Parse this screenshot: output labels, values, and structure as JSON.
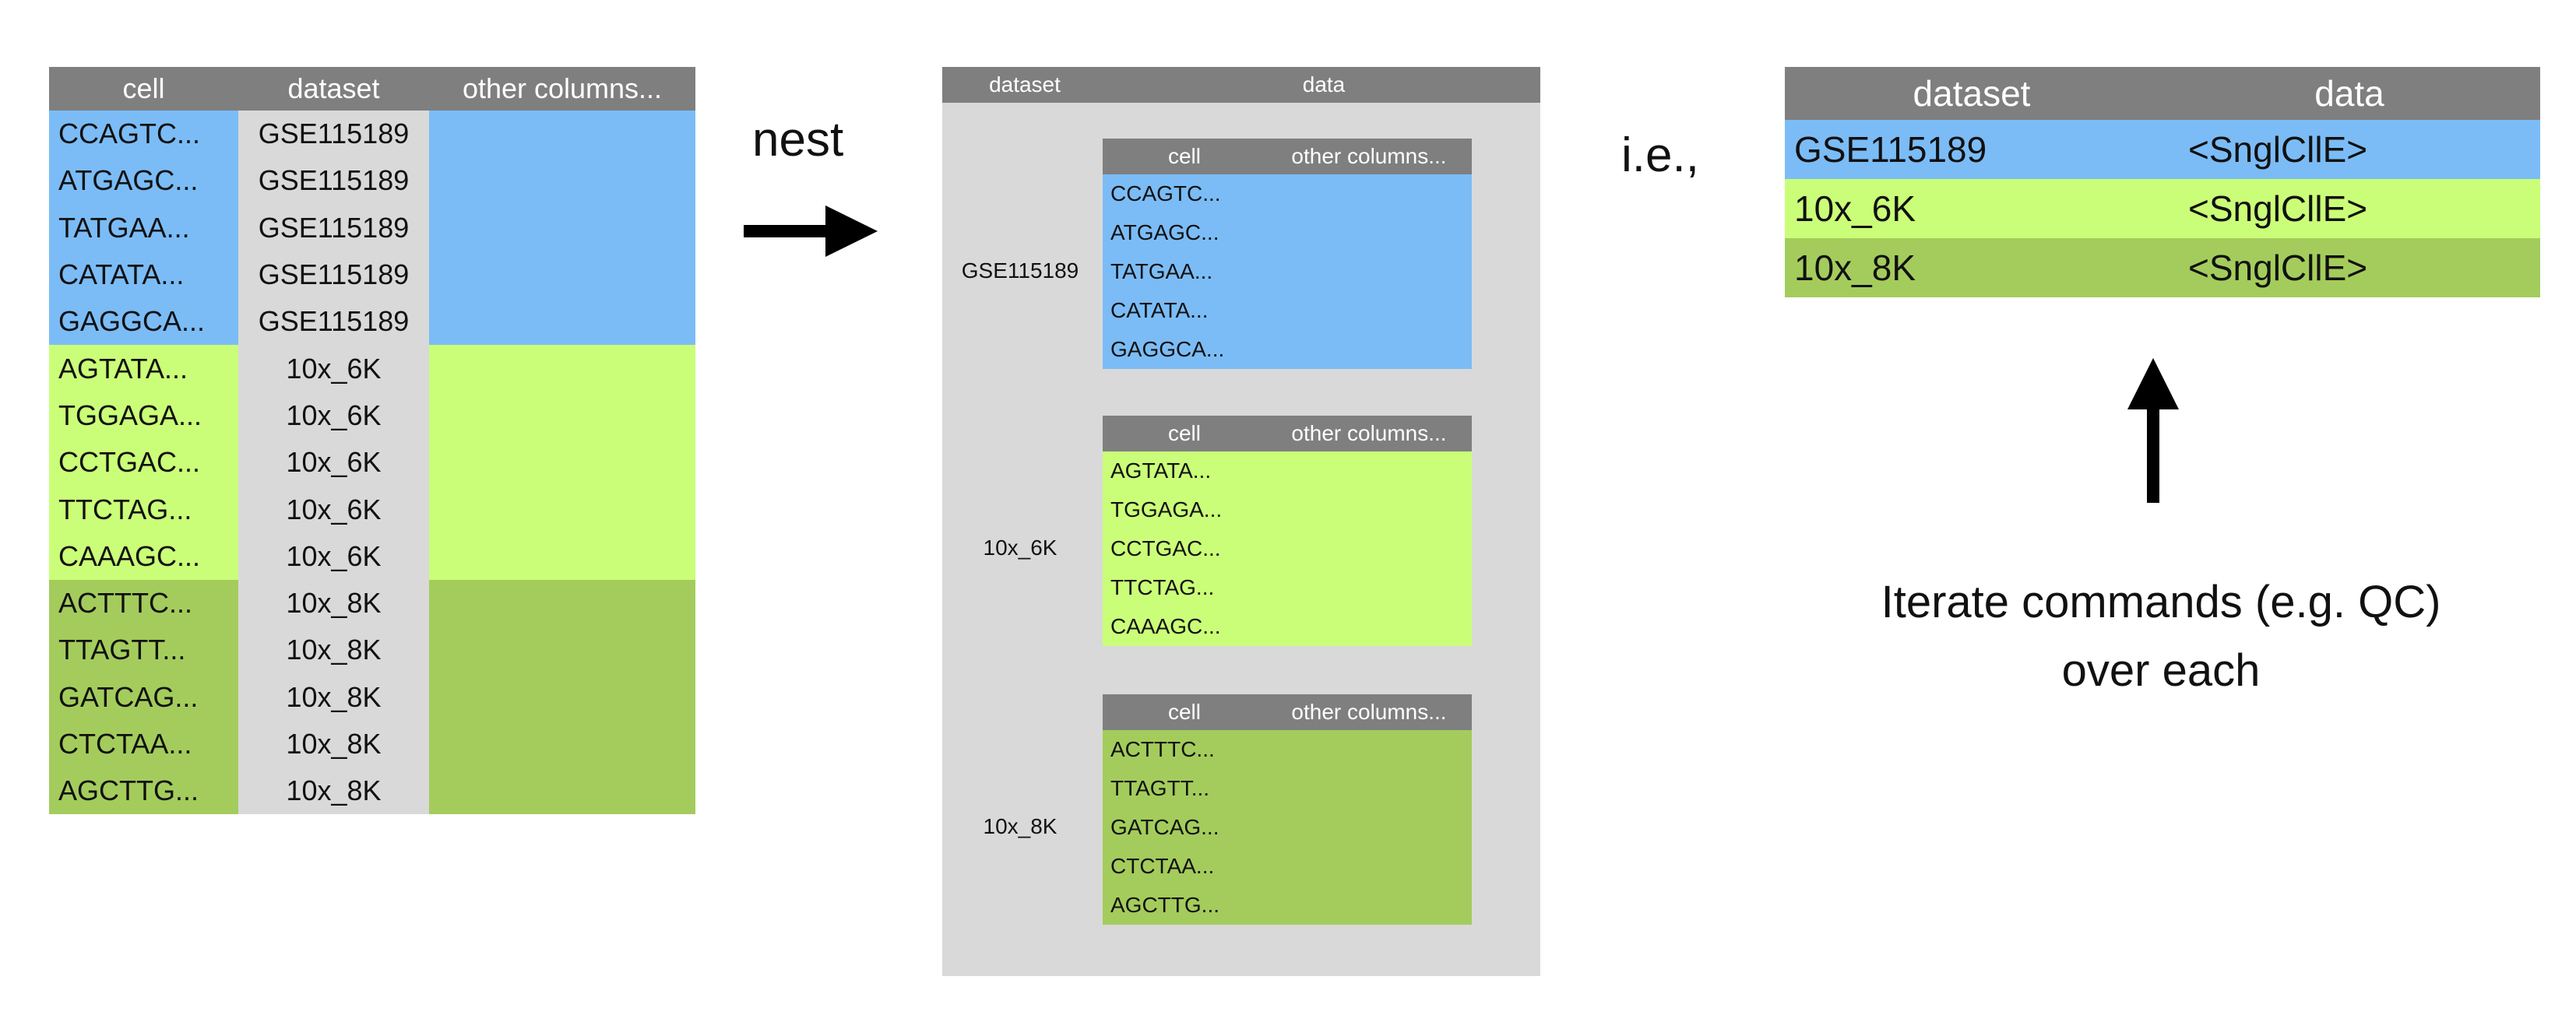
{
  "flat_table": {
    "headers": [
      "cell",
      "dataset",
      "other columns..."
    ],
    "rows": [
      {
        "cell": "CCAGTC...",
        "dataset": "GSE115189",
        "group": "blue"
      },
      {
        "cell": "ATGAGC...",
        "dataset": "GSE115189",
        "group": "blue"
      },
      {
        "cell": "TATGAA...",
        "dataset": "GSE115189",
        "group": "blue"
      },
      {
        "cell": "CATATA...",
        "dataset": "GSE115189",
        "group": "blue"
      },
      {
        "cell": "GAGGCA...",
        "dataset": "GSE115189",
        "group": "blue"
      },
      {
        "cell": "AGTATA...",
        "dataset": "10x_6K",
        "group": "lime"
      },
      {
        "cell": "TGGAGA...",
        "dataset": "10x_6K",
        "group": "lime"
      },
      {
        "cell": "CCTGAC...",
        "dataset": "10x_6K",
        "group": "lime"
      },
      {
        "cell": "TTCTAG...",
        "dataset": "10x_6K",
        "group": "lime"
      },
      {
        "cell": "CAAAGC...",
        "dataset": "10x_6K",
        "group": "lime"
      },
      {
        "cell": "ACTTTC...",
        "dataset": "10x_8K",
        "group": "olive"
      },
      {
        "cell": "TTAGTT...",
        "dataset": "10x_8K",
        "group": "olive"
      },
      {
        "cell": "GATCAG...",
        "dataset": "10x_8K",
        "group": "olive"
      },
      {
        "cell": "CTCTAA...",
        "dataset": "10x_8K",
        "group": "olive"
      },
      {
        "cell": "AGCTTG...",
        "dataset": "10x_8K",
        "group": "olive"
      }
    ]
  },
  "nest_label": "nest",
  "nested_table": {
    "headers": [
      "dataset",
      "data"
    ],
    "inner_headers": [
      "cell",
      "other columns..."
    ],
    "groups": [
      {
        "dataset": "GSE115189",
        "color": "blue",
        "cells": [
          "CCAGTC...",
          "ATGAGC...",
          "TATGAA...",
          "CATATA...",
          "GAGGCA..."
        ]
      },
      {
        "dataset": "10x_6K",
        "color": "lime",
        "cells": [
          "AGTATA...",
          "TGGAGA...",
          "CCTGAC...",
          "TTCTAG...",
          "CAAAGC..."
        ]
      },
      {
        "dataset": "10x_8K",
        "color": "olive",
        "cells": [
          "ACTTTC...",
          "TTAGTT...",
          "GATCAG...",
          "CTCTAA...",
          "AGCTTG..."
        ]
      }
    ]
  },
  "ie_label": "i.e.,",
  "summary_table": {
    "headers": [
      "dataset",
      "data"
    ],
    "rows": [
      {
        "dataset": "GSE115189",
        "data": "<SnglCllE>",
        "color": "blue"
      },
      {
        "dataset": "10x_6K",
        "data": "<SnglCllE>",
        "color": "lime"
      },
      {
        "dataset": "10x_8K",
        "data": "<SnglCllE>",
        "color": "olive"
      }
    ]
  },
  "iterate_text": [
    "Iterate commands (e.g. QC)",
    "over each"
  ],
  "colors": {
    "blue": "#7bbcf6",
    "lime": "#cbfe78",
    "olive": "#a4cc5c",
    "header": "#7f7f7f",
    "panel": "#d9d9d9"
  }
}
